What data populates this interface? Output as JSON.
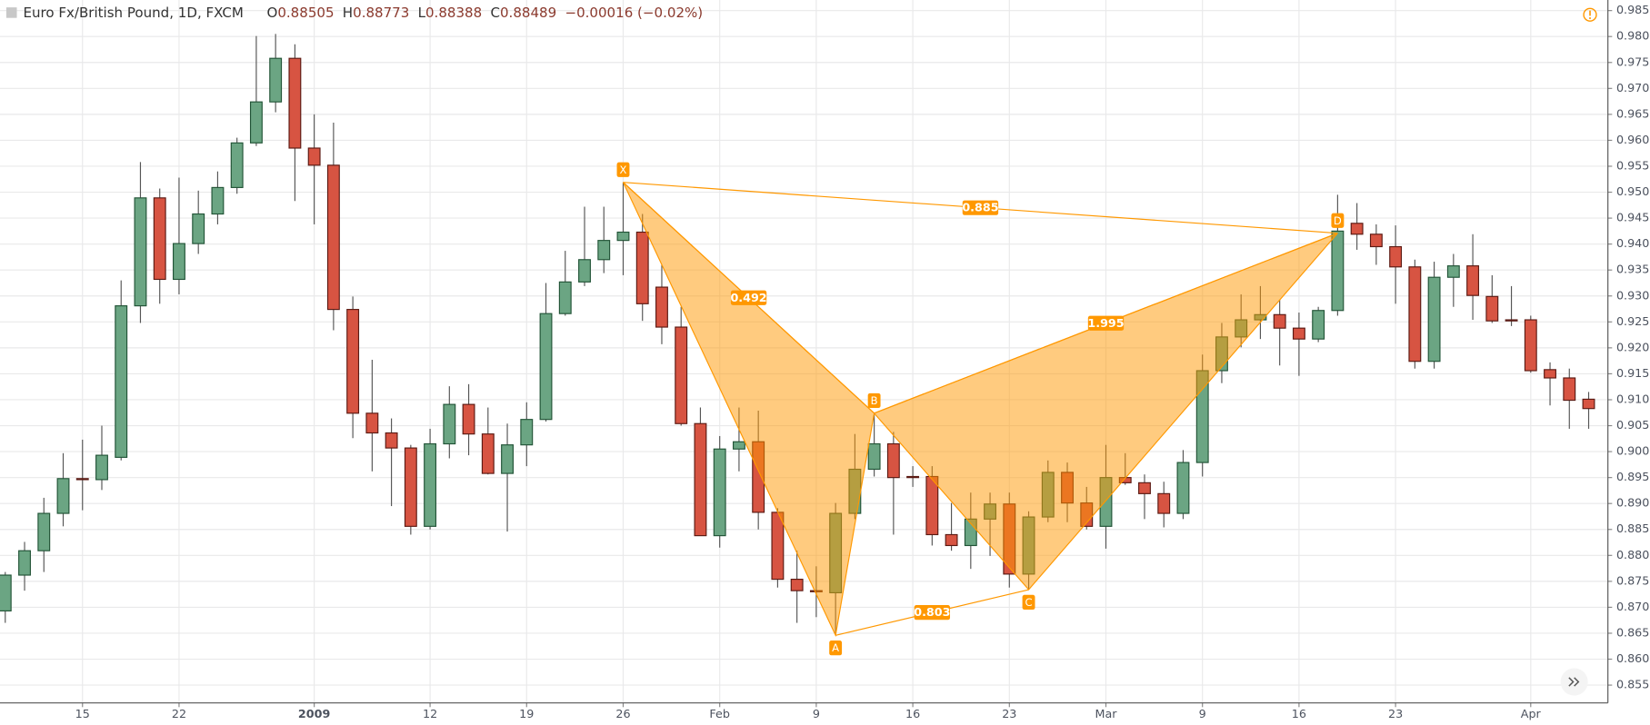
{
  "chart_data": {
    "type": "candlestick",
    "title": "Euro Fx/British Pound, 1D, FXCM",
    "ohlc": [
      {
        "label": "O",
        "value": 0.88505
      },
      {
        "label": "H",
        "value": 0.88773
      },
      {
        "label": "L",
        "value": 0.88388
      },
      {
        "label": "C",
        "value": 0.88489
      }
    ],
    "change": "−0.00016 (−0.02%)",
    "categories": [
      null,
      null,
      null,
      null,
      "15",
      null,
      null,
      null,
      null,
      "22",
      null,
      null,
      null,
      null,
      null,
      null,
      "2009",
      null,
      null,
      null,
      null,
      null,
      "12",
      null,
      null,
      null,
      null,
      "19",
      null,
      null,
      null,
      null,
      "26",
      null,
      null,
      null,
      null,
      "Feb",
      null,
      null,
      null,
      null,
      "9",
      null,
      null,
      null,
      null,
      "16",
      null,
      null,
      null,
      null,
      "23",
      null,
      null,
      null,
      null,
      "Mar",
      null,
      null,
      null,
      null,
      "9",
      null,
      null,
      null,
      null,
      "16",
      null,
      null,
      null,
      null,
      "23",
      null,
      null,
      null,
      null,
      null,
      null,
      "Apr",
      null,
      null,
      null
    ],
    "open": [
      0.8693,
      0.8762,
      0.8809,
      0.8881,
      0.8948,
      0.8946,
      0.8989,
      0.9281,
      0.9489,
      0.9332,
      0.9401,
      0.9458,
      0.9509,
      0.9595,
      0.9674,
      0.9758,
      0.9585,
      0.9552,
      0.9274,
      0.9074,
      0.9036,
      0.9007,
      0.8856,
      0.9015,
      0.9091,
      0.9034,
      0.8958,
      0.9013,
      0.9062,
      0.9266,
      0.9327,
      0.937,
      0.9407,
      0.9423,
      0.9317,
      0.924,
      0.9054,
      0.8838,
      0.9005,
      0.9019,
      0.8883,
      0.8754,
      0.8732,
      0.8728,
      0.8881,
      0.8966,
      0.9015,
      0.8952,
      0.8952,
      0.884,
      0.8819,
      0.887,
      0.8899,
      0.8764,
      0.8874,
      0.896,
      0.8901,
      0.8856,
      0.895,
      0.894,
      0.8919,
      0.8881,
      0.8979,
      0.9156,
      0.9221,
      0.9254,
      0.9264,
      0.9238,
      0.9217,
      0.9272,
      0.944,
      0.9419,
      0.9395,
      0.9356,
      0.9174,
      0.9336,
      0.9358,
      0.9299,
      0.9254,
      0.9254,
      0.9158,
      0.9142,
      0.9101
    ],
    "high": [
      0.8768,
      0.8826,
      0.8911,
      0.8997,
      0.9023,
      0.905,
      0.933,
      0.9558,
      0.9507,
      0.9528,
      0.9503,
      0.954,
      0.9605,
      0.9801,
      0.9805,
      0.9785,
      0.965,
      0.9634,
      0.9299,
      0.9177,
      0.9064,
      0.9013,
      0.9044,
      0.9126,
      0.913,
      0.9085,
      0.9054,
      0.9095,
      0.9325,
      0.9387,
      0.9472,
      0.9472,
      0.9519,
      0.9458,
      0.936,
      0.9279,
      0.9085,
      0.903,
      0.9085,
      0.9079,
      0.8891,
      0.8809,
      0.8779,
      0.8901,
      0.9034,
      0.9074,
      0.9038,
      0.8972,
      0.8972,
      0.8901,
      0.8921,
      0.8921,
      0.8921,
      0.8885,
      0.8983,
      0.8979,
      0.8932,
      0.9013,
      0.8997,
      0.8956,
      0.8942,
      0.9003,
      0.9187,
      0.9248,
      0.9303,
      0.9319,
      0.9293,
      0.9268,
      0.9279,
      0.9495,
      0.9479,
      0.9438,
      0.9436,
      0.937,
      0.9366,
      0.9381,
      0.9419,
      0.934,
      0.9319,
      0.9262,
      0.9172,
      0.916,
      0.9115
    ],
    "low": [
      0.867,
      0.8732,
      0.8768,
      0.8856,
      0.8887,
      0.8926,
      0.8983,
      0.9248,
      0.9285,
      0.9303,
      0.9381,
      0.9438,
      0.9497,
      0.9589,
      0.9654,
      0.9483,
      0.9438,
      0.9234,
      0.9026,
      0.8962,
      0.8895,
      0.884,
      0.885,
      0.8987,
      0.8993,
      0.8956,
      0.8846,
      0.8972,
      0.9058,
      0.9262,
      0.9319,
      0.9344,
      0.934,
      0.9252,
      0.9207,
      0.905,
      0.8838,
      0.8815,
      0.8962,
      0.885,
      0.8738,
      0.867,
      0.8681,
      0.8646,
      0.887,
      0.8952,
      0.884,
      0.8932,
      0.8819,
      0.8809,
      0.8774,
      0.8799,
      0.8738,
      0.8734,
      0.8864,
      0.8864,
      0.885,
      0.8813,
      0.8936,
      0.887,
      0.8854,
      0.887,
      0.8952,
      0.9132,
      0.9201,
      0.9217,
      0.9166,
      0.9146,
      0.9211,
      0.9262,
      0.9389,
      0.936,
      0.9285,
      0.916,
      0.916,
      0.9279,
      0.9254,
      0.9248,
      0.9242,
      0.9152,
      0.9089,
      0.9044,
      0.9044
    ],
    "close": [
      0.8762,
      0.8809,
      0.8881,
      0.8948,
      0.8946,
      0.8993,
      0.9281,
      0.9489,
      0.9332,
      0.9401,
      0.9458,
      0.9509,
      0.9595,
      0.9674,
      0.9758,
      0.9585,
      0.9552,
      0.9274,
      0.9074,
      0.9036,
      0.9007,
      0.8856,
      0.9015,
      0.9091,
      0.9034,
      0.8958,
      0.9013,
      0.9062,
      0.9266,
      0.9327,
      0.937,
      0.9407,
      0.9423,
      0.9285,
      0.924,
      0.9054,
      0.8838,
      0.9005,
      0.9019,
      0.8883,
      0.8754,
      0.8732,
      0.873,
      0.8881,
      0.8966,
      0.9015,
      0.895,
      0.895,
      0.884,
      0.8819,
      0.887,
      0.8899,
      0.8764,
      0.8874,
      0.896,
      0.8901,
      0.8856,
      0.895,
      0.894,
      0.8919,
      0.8881,
      0.8979,
      0.9156,
      0.9221,
      0.9254,
      0.9264,
      0.9238,
      0.9217,
      0.9272,
      0.9425,
      0.9419,
      0.9395,
      0.9356,
      0.9174,
      0.9336,
      0.9358,
      0.9301,
      0.9252,
      0.9252,
      0.9156,
      0.9142,
      0.9099,
      0.9083
    ],
    "up_color": "#6ba583",
    "down_color": "#d75442",
    "ylim": [
      0.85157,
      0.98704
    ],
    "yticks": [
      {
        "value": 0.855,
        "label": "0.85500"
      },
      {
        "value": 0.86,
        "label": "0.86000"
      },
      {
        "value": 0.865,
        "label": "0.86500"
      },
      {
        "value": 0.87,
        "label": "0.87000"
      },
      {
        "value": 0.875,
        "label": "0.87500"
      },
      {
        "value": 0.88,
        "label": "0.88000"
      },
      {
        "value": 0.885,
        "label": "0.88500"
      },
      {
        "value": 0.89,
        "label": "0.89000"
      },
      {
        "value": 0.895,
        "label": "0.89500"
      },
      {
        "value": 0.9,
        "label": "0.90000"
      },
      {
        "value": 0.905,
        "label": "0.90500"
      },
      {
        "value": 0.91,
        "label": "0.91000"
      },
      {
        "value": 0.915,
        "label": "0.91500"
      },
      {
        "value": 0.92,
        "label": "0.92000"
      },
      {
        "value": 0.925,
        "label": "0.92500"
      },
      {
        "value": 0.93,
        "label": "0.93000"
      },
      {
        "value": 0.935,
        "label": "0.93500"
      },
      {
        "value": 0.94,
        "label": "0.94000"
      },
      {
        "value": 0.945,
        "label": "0.94500"
      },
      {
        "value": 0.95,
        "label": "0.95000"
      },
      {
        "value": 0.955,
        "label": "0.95500"
      },
      {
        "value": 0.96,
        "label": "0.96000"
      },
      {
        "value": 0.965,
        "label": "0.96500"
      },
      {
        "value": 0.97,
        "label": "0.97000"
      },
      {
        "value": 0.975,
        "label": "0.97500"
      },
      {
        "value": 0.98,
        "label": "0.98000"
      },
      {
        "value": 0.985,
        "label": "0.98500"
      }
    ],
    "grid": true,
    "pattern": {
      "color": "#ff9800",
      "points": [
        {
          "label": "X",
          "x": 32,
          "y": 0.9519
        },
        {
          "label": "A",
          "x": 43,
          "y": 0.8646
        },
        {
          "label": "B",
          "x": 45,
          "y": 0.9074
        },
        {
          "label": "C",
          "x": 53,
          "y": 0.8734
        },
        {
          "label": "D",
          "x": 69,
          "y": 0.9421
        }
      ],
      "ratios": {
        "XD": 0.885,
        "XB": 0.492,
        "BD": 1.995,
        "AC": 0.803
      }
    }
  }
}
